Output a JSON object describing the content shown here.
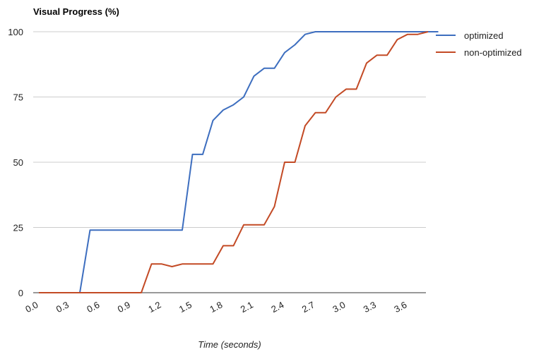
{
  "chart_data": {
    "type": "line",
    "title": "Visual Progress (%)",
    "xlabel": "Time (seconds)",
    "ylabel": "",
    "xlim": [
      0,
      3.9
    ],
    "ylim": [
      0,
      100
    ],
    "x_ticks": [
      "0.0",
      "0.3",
      "0.6",
      "0.9",
      "1.2",
      "1.5",
      "1.8",
      "2.1",
      "2.4",
      "2.7",
      "3.0",
      "3.3",
      "3.6"
    ],
    "y_ticks": [
      "0",
      "25",
      "50",
      "75",
      "100"
    ],
    "grid": true,
    "legend": "right",
    "series": [
      {
        "name": "optimized",
        "color": "#3d6ebf",
        "points": [
          [
            0.0,
            0
          ],
          [
            0.3,
            0
          ],
          [
            0.4,
            0
          ],
          [
            0.5,
            24
          ],
          [
            0.8,
            24
          ],
          [
            1.1,
            24
          ],
          [
            1.4,
            24
          ],
          [
            1.5,
            53
          ],
          [
            1.6,
            53
          ],
          [
            1.7,
            66
          ],
          [
            1.8,
            70
          ],
          [
            1.9,
            72
          ],
          [
            2.0,
            75
          ],
          [
            2.1,
            83
          ],
          [
            2.2,
            86
          ],
          [
            2.3,
            86
          ],
          [
            2.4,
            92
          ],
          [
            2.5,
            95
          ],
          [
            2.6,
            99
          ],
          [
            2.7,
            100
          ],
          [
            3.0,
            100
          ],
          [
            3.5,
            100
          ],
          [
            3.9,
            100
          ]
        ]
      },
      {
        "name": "non-optimized",
        "color": "#c34a25",
        "points": [
          [
            0.0,
            0
          ],
          [
            0.5,
            0
          ],
          [
            0.9,
            0
          ],
          [
            1.0,
            0
          ],
          [
            1.1,
            11
          ],
          [
            1.2,
            11
          ],
          [
            1.3,
            10
          ],
          [
            1.4,
            11
          ],
          [
            1.5,
            11
          ],
          [
            1.6,
            11
          ],
          [
            1.7,
            11
          ],
          [
            1.8,
            18
          ],
          [
            1.9,
            18
          ],
          [
            2.0,
            26
          ],
          [
            2.1,
            26
          ],
          [
            2.2,
            26
          ],
          [
            2.3,
            33
          ],
          [
            2.4,
            50
          ],
          [
            2.5,
            50
          ],
          [
            2.6,
            64
          ],
          [
            2.7,
            69
          ],
          [
            2.8,
            69
          ],
          [
            2.9,
            75
          ],
          [
            3.0,
            78
          ],
          [
            3.1,
            78
          ],
          [
            3.2,
            88
          ],
          [
            3.3,
            91
          ],
          [
            3.4,
            91
          ],
          [
            3.5,
            97
          ],
          [
            3.6,
            99
          ],
          [
            3.7,
            99
          ],
          [
            3.8,
            100
          ]
        ]
      }
    ]
  }
}
